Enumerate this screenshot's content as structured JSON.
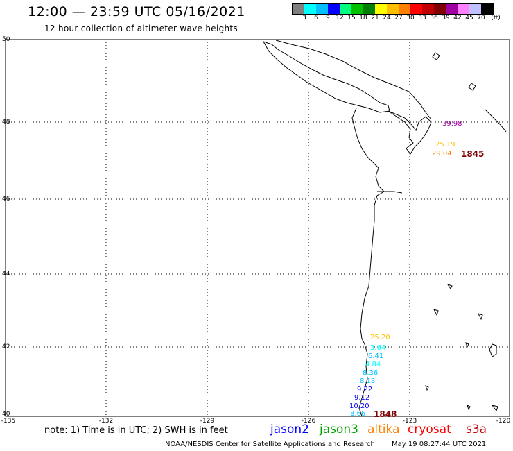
{
  "header": {
    "title": "12:00 — 23:59 UTC 05/16/2021",
    "subtitle": "12 hour collection of altimeter wave heights"
  },
  "legend": {
    "unit": "(ft)",
    "colors": [
      "#7f7f7f",
      "#00ffff",
      "#00bfff",
      "#0000ff",
      "#00ff7f",
      "#00c000",
      "#008000",
      "#ffff00",
      "#ffbf00",
      "#ff8000",
      "#ff0000",
      "#c00000",
      "#800000",
      "#a000a0",
      "#ff80ff",
      "#c0c0ff",
      "#000000"
    ],
    "labels": [
      "3",
      "6",
      "9",
      "12",
      "15",
      "18",
      "21",
      "24",
      "27",
      "30",
      "33",
      "36",
      "39",
      "42",
      "45",
      "70"
    ]
  },
  "map": {
    "lat_labels": [
      "50",
      "48",
      "46",
      "44",
      "42",
      "40"
    ],
    "lon_labels": [
      "-135",
      "-132",
      "-129",
      "-126",
      "-123",
      "-120"
    ],
    "observations": [
      {
        "text": "39.98",
        "color": "#a000a0"
      },
      {
        "text": "25.19",
        "color": "#ffbf00"
      },
      {
        "text": "29.04",
        "color": "#ff8000"
      },
      {
        "text": "25.20",
        "color": "#ffbf00"
      },
      {
        "text": "3.64",
        "color": "#00ffff"
      },
      {
        "text": "6.41",
        "color": "#00bfff"
      },
      {
        "text": "4.84",
        "color": "#00ffff"
      },
      {
        "text": "8.36",
        "color": "#00bfff"
      },
      {
        "text": "8.18",
        "color": "#00bfff"
      },
      {
        "text": "9.22",
        "color": "#0000ff"
      },
      {
        "text": "9.12",
        "color": "#0000ff"
      },
      {
        "text": "10.20",
        "color": "#0000ff"
      },
      {
        "text": "8.66",
        "color": "#00bfff"
      }
    ],
    "pass_labels": [
      {
        "text": "1845",
        "color": "#800000"
      },
      {
        "text": "1848",
        "color": "#800000"
      }
    ]
  },
  "bottom": {
    "note": "note: 1) Time is in UTC; 2) SWH is in feet",
    "missions": [
      {
        "text": "jason2",
        "color": "#0000ff"
      },
      {
        "text": "jason3",
        "color": "#00a000"
      },
      {
        "text": "altika",
        "color": "#ff8000"
      },
      {
        "text": "cryosat",
        "color": "#ff0000"
      },
      {
        "text": "s3a",
        "color": "#c00000"
      }
    ],
    "footer": "NOAA/NESDIS Center for Satellite Applications and Research",
    "timestamp": "May 19 08:27:44 UTC 2021"
  }
}
